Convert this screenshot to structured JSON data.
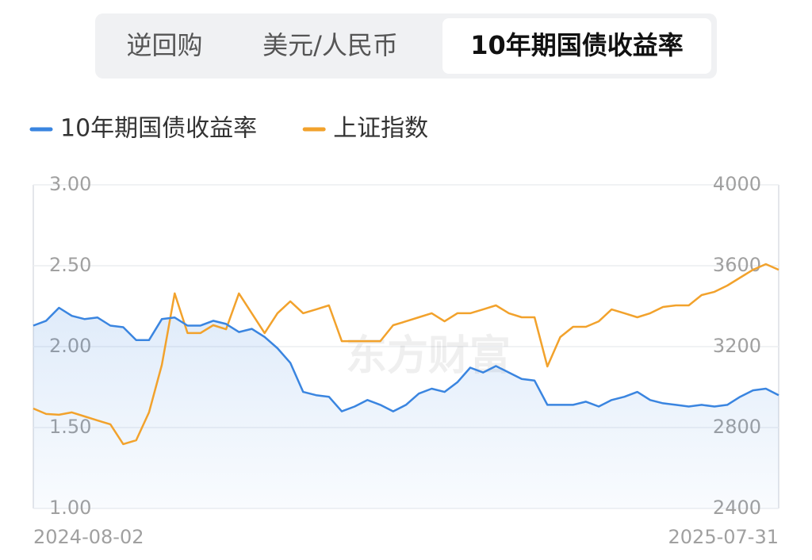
{
  "tabs": [
    "逆回购",
    "美元/人民币",
    "10年期国债收益率"
  ],
  "active_tab": 2,
  "chart_data": {
    "type": "line",
    "watermark": "东方财富",
    "categories": [
      "2024-08-02",
      null,
      null,
      null,
      null,
      null,
      null,
      null,
      null,
      null,
      null,
      null,
      null,
      null,
      null,
      null,
      null,
      null,
      null,
      null,
      null,
      null,
      null,
      null,
      null,
      null,
      null,
      null,
      null,
      null,
      null,
      null,
      null,
      null,
      null,
      null,
      null,
      null,
      null,
      null,
      null,
      null,
      null,
      null,
      null,
      null,
      null,
      null,
      null,
      null,
      null,
      null,
      null,
      null,
      null,
      null,
      null,
      null,
      "2025-07-31"
    ],
    "series": [
      {
        "name": "10年期国债收益率",
        "color": "#3a85e0",
        "values": [
          2.13,
          2.16,
          2.24,
          2.19,
          2.17,
          2.18,
          2.13,
          2.12,
          2.04,
          2.04,
          2.17,
          2.18,
          2.13,
          2.13,
          2.16,
          2.14,
          2.09,
          2.11,
          2.06,
          1.99,
          1.9,
          1.72,
          1.7,
          1.69,
          1.6,
          1.63,
          1.67,
          1.64,
          1.6,
          1.64,
          1.71,
          1.74,
          1.72,
          1.78,
          1.87,
          1.84,
          1.88,
          1.84,
          1.8,
          1.79,
          1.64,
          1.64,
          1.64,
          1.66,
          1.63,
          1.67,
          1.69,
          1.72,
          1.67,
          1.65,
          1.64,
          1.63,
          1.64,
          1.63,
          1.64,
          1.69,
          1.73,
          1.74,
          1.7
        ]
      },
      {
        "name": "上证指数",
        "color": "#f2a22c",
        "axis": "y2",
        "values": [
          2894,
          2867,
          2863,
          2875,
          2855,
          2835,
          2816,
          2718,
          2737,
          2875,
          3110,
          3463,
          3267,
          3267,
          3306,
          3286,
          3463,
          3365,
          3267,
          3365,
          3424,
          3365,
          3384,
          3404,
          3227,
          3227,
          3227,
          3227,
          3306,
          3325,
          3345,
          3365,
          3325,
          3365,
          3365,
          3384,
          3404,
          3365,
          3345,
          3345,
          3102,
          3247,
          3298,
          3298,
          3325,
          3384,
          3365,
          3345,
          3365,
          3396,
          3404,
          3404,
          3455,
          3471,
          3502,
          3541,
          3580,
          3608,
          3580
        ]
      }
    ],
    "ylim": [
      1,
      3
    ],
    "yticks": [
      {
        "value": 1,
        "label": "1.00"
      },
      {
        "value": 1.5,
        "label": "1.50"
      },
      {
        "value": 2,
        "label": "2.00"
      },
      {
        "value": 2.5,
        "label": "2.50"
      },
      {
        "value": 3,
        "label": "3.00"
      }
    ],
    "y2lim": [
      2400,
      4000
    ],
    "y2ticks": [
      2400,
      2800,
      3200,
      3600,
      4000
    ],
    "grid": true
  }
}
